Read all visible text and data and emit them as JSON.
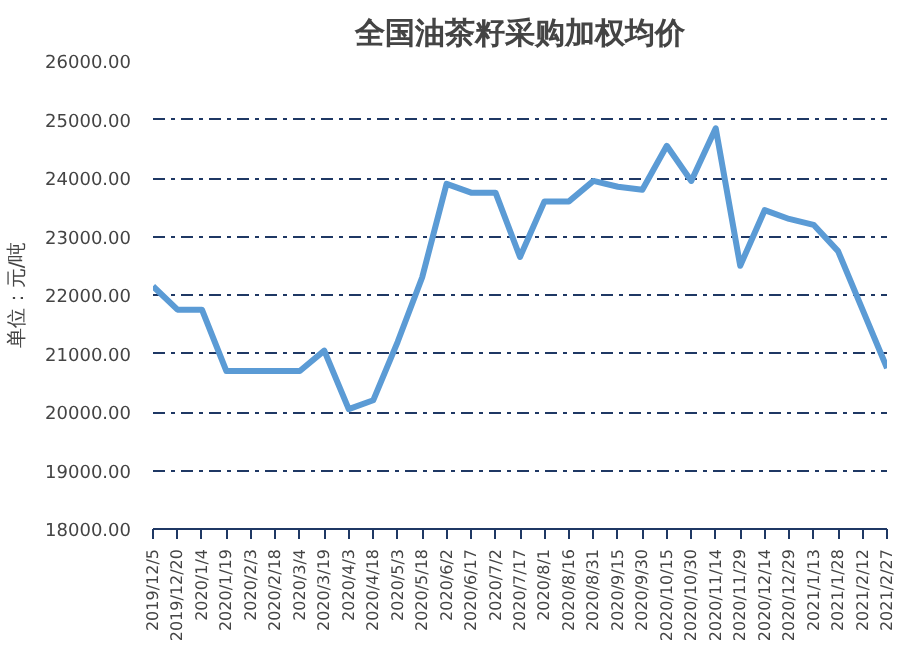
{
  "chart_data": {
    "type": "line",
    "title": "全国油茶籽采购加权均价",
    "ylabel": "单位：元/吨",
    "categories": [
      "2019/12/5",
      "2019/12/20",
      "2020/1/4",
      "2020/1/19",
      "2020/2/3",
      "2020/2/18",
      "2020/3/4",
      "2020/3/19",
      "2020/4/3",
      "2020/4/18",
      "2020/5/3",
      "2020/5/18",
      "2020/6/2",
      "2020/6/17",
      "2020/7/2",
      "2020/7/17",
      "2020/8/1",
      "2020/8/16",
      "2020/8/31",
      "2020/9/15",
      "2020/9/30",
      "2020/10/15",
      "2020/10/30",
      "2020/11/14",
      "2020/11/29",
      "2020/12/14",
      "2020/12/29",
      "2021/1/13",
      "2021/1/28",
      "2021/2/12",
      "2021/2/27"
    ],
    "series": [
      {
        "color": "#5b9bd5",
        "values": [
          22150,
          21750,
          21750,
          20700,
          20700,
          20700,
          20700,
          21050,
          20050,
          20200,
          21200,
          22300,
          23900,
          23750,
          23750,
          22650,
          23600,
          23600,
          23950,
          23850,
          23800,
          24550,
          23950,
          24850,
          22500,
          23450,
          23300,
          23200,
          22750,
          21750,
          20750
        ]
      }
    ],
    "ylim": [
      18000,
      26000
    ],
    "yticks": [
      {
        "value": 18000,
        "label": "18000.00"
      },
      {
        "value": 19000,
        "label": "19000.00"
      },
      {
        "value": 20000,
        "label": "20000.00"
      },
      {
        "value": 21000,
        "label": "21000.00"
      },
      {
        "value": 22000,
        "label": "22000.00"
      },
      {
        "value": 23000,
        "label": "23000.00"
      },
      {
        "value": 24000,
        "label": "24000.00"
      },
      {
        "value": 25000,
        "label": "25000.00"
      },
      {
        "value": 26000,
        "label": "26000.00"
      }
    ],
    "grid": "y",
    "line_style": "solid",
    "marker": "none"
  }
}
